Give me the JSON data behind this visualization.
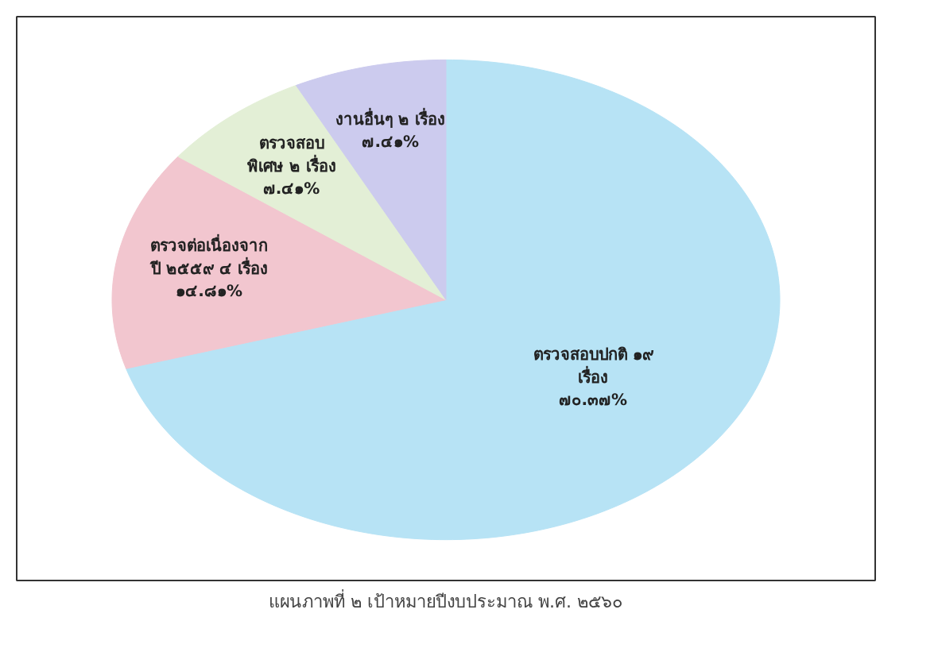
{
  "chart_data": {
    "type": "pie",
    "title": "แผนภาพที่ ๒ เป้าหมายปีงบประมาณ พ.ศ. ๒๕๖๐",
    "categories": [
      "ตรวจสอบปกติ ๑๙\nเรื่อง",
      "ตรวจต่อเนื่องจาก\nปี ๒๕๕๙ ๔ เรื่อง",
      "ตรวจสอบ\nพิเศษ ๒ เรื่อง",
      "งานอื่นๆ ๒ เรื่อง"
    ],
    "values": [
      70.37,
      14.81,
      7.41,
      7.41
    ],
    "value_labels": [
      "๗๐.๓๗%",
      "๑๔.๘๑%",
      "๗.๔๑%",
      "๗.๔๑%"
    ],
    "colors": [
      "#b7e3f5",
      "#f2c6cf",
      "#e3efd6",
      "#cccbee"
    ]
  }
}
